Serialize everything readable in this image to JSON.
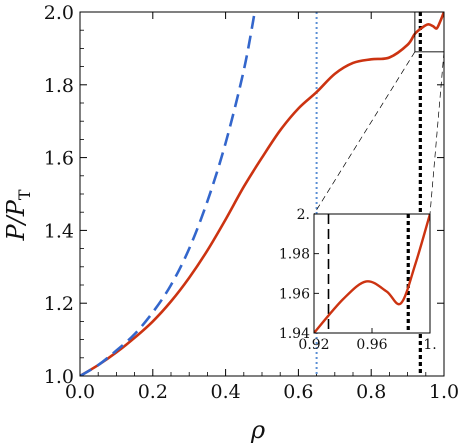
{
  "chart_data": {
    "type": "line",
    "xlabel": "ρ",
    "ylabel": "P/P",
    "ylabel_subscript": "T",
    "xlim": [
      0,
      1
    ],
    "ylim": [
      1.0,
      2.0
    ],
    "xticks": [
      0.0,
      0.2,
      0.4,
      0.6,
      0.8,
      1.0
    ],
    "xtick_labels": [
      "0.0",
      "0.2",
      "0.4",
      "0.6",
      "0.8",
      "1.0"
    ],
    "yticks": [
      1.0,
      1.2,
      1.4,
      1.6,
      1.8,
      2.0
    ],
    "ytick_labels": [
      "1.0",
      "1.2",
      "1.4",
      "1.6",
      "1.8",
      "2.0"
    ],
    "grid": false,
    "colors": {
      "solid": "#cc3311",
      "dashed": "#3366cc",
      "dotted": "#5b8fd4",
      "vline": "#000000"
    },
    "series": [
      {
        "style": "solid",
        "x": [
          0.0,
          0.05,
          0.1,
          0.15,
          0.2,
          0.25,
          0.3,
          0.35,
          0.4,
          0.45,
          0.5,
          0.55,
          0.6,
          0.65,
          0.7,
          0.75,
          0.8,
          0.85,
          0.9,
          0.92,
          0.94,
          0.956,
          0.97,
          0.98,
          0.99,
          1.0
        ],
        "y": [
          1.0,
          1.03,
          1.065,
          1.105,
          1.15,
          1.205,
          1.27,
          1.345,
          1.43,
          1.52,
          1.6,
          1.675,
          1.735,
          1.78,
          1.83,
          1.86,
          1.87,
          1.875,
          1.91,
          1.94,
          1.957,
          1.966,
          1.961,
          1.955,
          1.975,
          2.0
        ]
      },
      {
        "style": "dashed",
        "x": [
          0.0,
          0.05,
          0.1,
          0.15,
          0.2,
          0.25,
          0.3,
          0.35,
          0.4,
          0.45,
          0.48
        ],
        "y": [
          1.0,
          1.03,
          1.07,
          1.115,
          1.175,
          1.25,
          1.35,
          1.48,
          1.64,
          1.84,
          2.0
        ]
      }
    ],
    "vlines": [
      {
        "x": 0.65,
        "style": "dotted"
      },
      {
        "x": 0.935,
        "style": "dotted-thick"
      }
    ],
    "inset": {
      "xlim": [
        0.92,
        1.0
      ],
      "ylim": [
        1.94,
        2.0
      ],
      "xticks": [
        0.92,
        0.96,
        1.0
      ],
      "xtick_labels": [
        "0.92",
        "0.96",
        "1."
      ],
      "yticks": [
        1.94,
        1.96,
        1.98,
        2.0
      ],
      "ytick_labels": [
        "1.94",
        "1.96",
        "1.98",
        "2."
      ],
      "vlines": [
        {
          "x": 0.93,
          "style": "dashed"
        },
        {
          "x": 0.985,
          "style": "dotted-thick"
        }
      ]
    }
  }
}
